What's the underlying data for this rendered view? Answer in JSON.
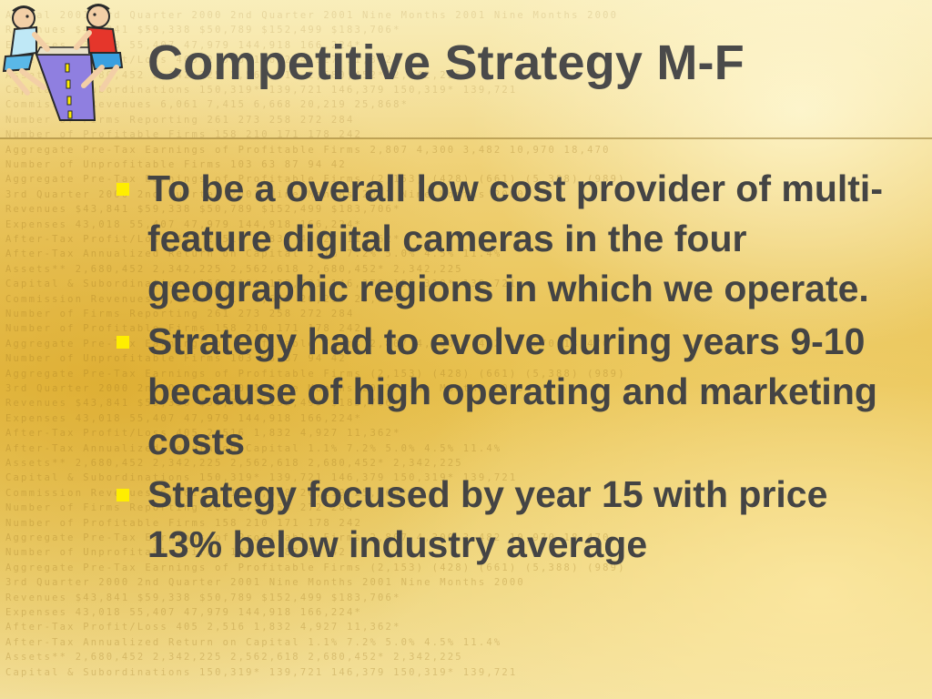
{
  "slide": {
    "title": "Competitive Strategy M-F",
    "bullets": [
      "To be a overall low cost provider of multi-feature digital cameras in the four geographic regions in which we operate.",
      "Strategy had to evolve during years 9-10 because of high operating and marketing costs",
      "Strategy focused by year 15 with price 13% below industry average"
    ]
  },
  "background": {
    "watermark_lines": [
      "Annual 2001 3rd Quarter 2000 2nd Quarter 2001 Nine Months 2001 Nine Months 2000",
      "Revenues $43,841 $59,338 $50,789 $152,499 $183,706*",
      "Expenses 43,018 55,407 47,979 144,918 166,224*",
      "After-Tax Profit/Loss 405 2,516 1,832 4,927 11,362*",
      "Assets** 2,680,452 2,342,225 2,562,618 2,680,452* 2,342,225",
      "Capital & Subordinations 150,319* 139,721 146,379 150,319* 139,721",
      "Commission Revenues 6,061 7,415 6,668 20,219 25,868*",
      "Number of Firms Reporting 261 273 258 272 284",
      "Number of Profitable Firms 158 210 171 178 242",
      "Aggregate Pre-Tax Earnings of Profitable Firms 2,807 4,300 3,482 10,970 18,470",
      "Number of Unprofitable Firms 103 63 87 94 42",
      "Aggregate Pre-Tax Earnings of Profitable Firms (2,153) (428) (661) (5,388) (989)",
      "3rd Quarter 2000 2nd Quarter 2001 Nine Months 2001 Nine Months 2000",
      "Revenues $43,841 $59,338 $50,789 $152,499 $183,706*",
      "Expenses 43,018 55,407 47,979 144,918 166,224*",
      "After-Tax Profit/Loss 405 2,516 1,832 4,927 11,362*",
      "After-Tax Annualized Return on Capital 1.1% 7.2% 5.0% 4.5% 11.4%",
      "Assets** 2,680,452 2,342,225 2,562,618 2,680,452* 2,342,225",
      "Capital & Subordinations 150,319* 139,721 146,379 150,319* 139,721",
      "Commission Revenues 6,061 7,415 6,668 20,219 25,868*",
      "Number of Firms Reporting 261 273 258 272 284",
      "Number of Profitable Firms 158 210 171 178 242",
      "Aggregate Pre-Tax Earnings of Profitable Firms 2,807 4,300 3,482 10,970 18,470",
      "Number of Unprofitable Firms 103 63 87 94 42",
      "Aggregate Pre-Tax Earnings of Profitable Firms (2,153) (428) (661) (5,388) (989)",
      "3rd Quarter 2000 2nd Quarter 2001 Nine Months 2001 Nine Months 2000",
      "Revenues $43,841 $59,338 $50,789 $152,499 $183,706*",
      "Expenses 43,018 55,407 47,979 144,918 166,224*",
      "After-Tax Profit/Loss 405 2,516 1,832 4,927 11,362*",
      "After-Tax Annualized Return on Capital 1.1% 7.2% 5.0% 4.5% 11.4%",
      "Assets** 2,680,452 2,342,225 2,562,618 2,680,452* 2,342,225",
      "Capital & Subordinations 150,319* 139,721 146,379 150,319* 139,721",
      "Commission Revenues 6,061 7,415 6,668 20,219 25,868*",
      "Number of Firms Reporting 261 273 258 272 284",
      "Number of Profitable Firms 158 210 171 178 242",
      "Aggregate Pre-Tax Earnings of Profitable Firms 2,807 4,300 3,482 10,970 18,470",
      "Number of Unprofitable Firms 103 63 87 94 42",
      "Aggregate Pre-Tax Earnings of Profitable Firms (2,153) (428) (661) (5,388) (989)",
      "3rd Quarter 2000 2nd Quarter 2001 Nine Months 2001 Nine Months 2000",
      "Revenues $43,841 $59,338 $50,789 $152,499 $183,706*",
      "Expenses 43,018 55,407 47,979 144,918 166,224*",
      "After-Tax Profit/Loss 405 2,516 1,832 4,927 11,362*",
      "After-Tax Annualized Return on Capital 1.1% 7.2% 5.0% 4.5% 11.4%",
      "Assets** 2,680,452 2,342,225 2,562,618 2,680,452* 2,342,225",
      "Capital & Subordinations 150,319* 139,721 146,379 150,319* 139,721"
    ]
  },
  "colors": {
    "title_text": "#4a4a4a",
    "body_text": "#444444",
    "bullet_marker": "#ffee00"
  },
  "icons": {
    "logo": "two-people-pulling-road-clipart-icon"
  }
}
